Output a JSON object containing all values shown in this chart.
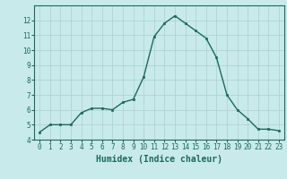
{
  "x": [
    0,
    1,
    2,
    3,
    4,
    5,
    6,
    7,
    8,
    9,
    10,
    11,
    12,
    13,
    14,
    15,
    16,
    17,
    18,
    19,
    20,
    21,
    22,
    23
  ],
  "y": [
    4.5,
    5.0,
    5.0,
    5.0,
    5.8,
    6.1,
    6.1,
    6.0,
    6.5,
    6.7,
    8.2,
    10.9,
    11.8,
    12.3,
    11.8,
    11.3,
    10.8,
    9.5,
    7.0,
    6.0,
    5.4,
    4.7,
    4.7,
    4.6
  ],
  "line_color": "#1a6b5a",
  "marker": "s",
  "marker_size": 2.0,
  "bg_color": "#c8eaea",
  "grid_color": "#b0d4d4",
  "xlabel": "Humidex (Indice chaleur)",
  "xlabel_fontsize": 7.0,
  "xlim": [
    -0.5,
    23.5
  ],
  "ylim": [
    4,
    13
  ],
  "yticks": [
    4,
    5,
    6,
    7,
    8,
    9,
    10,
    11,
    12
  ],
  "xticks": [
    0,
    1,
    2,
    3,
    4,
    5,
    6,
    7,
    8,
    9,
    10,
    11,
    12,
    13,
    14,
    15,
    16,
    17,
    18,
    19,
    20,
    21,
    22,
    23
  ],
  "tick_fontsize": 5.5,
  "line_width": 1.0
}
